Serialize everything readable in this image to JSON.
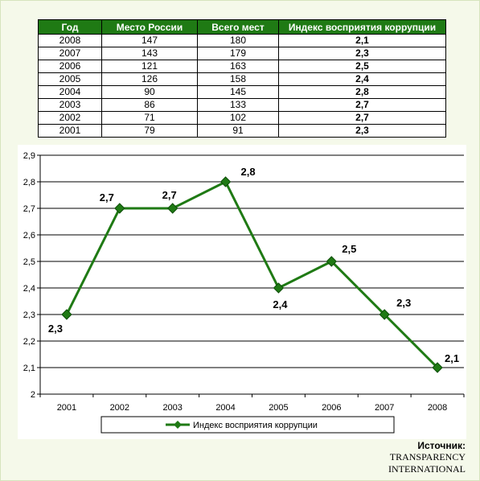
{
  "table": {
    "headers": [
      "Год",
      "Место России",
      "Всего мест",
      "Индекс восприятия коррупции"
    ],
    "rows": [
      [
        "2008",
        "147",
        "180",
        "2,1"
      ],
      [
        "2007",
        "143",
        "179",
        "2,3"
      ],
      [
        "2006",
        "121",
        "163",
        "2,5"
      ],
      [
        "2005",
        "126",
        "158",
        "2,4"
      ],
      [
        "2004",
        "90",
        "145",
        "2,8"
      ],
      [
        "2003",
        "86",
        "133",
        "2,7"
      ],
      [
        "2002",
        "71",
        "102",
        "2,7"
      ],
      [
        "2001",
        "79",
        "91",
        "2,3"
      ]
    ]
  },
  "chart_data": {
    "type": "line",
    "categories": [
      "2001",
      "2002",
      "2003",
      "2004",
      "2005",
      "2006",
      "2007",
      "2008"
    ],
    "series": [
      {
        "name": "Индекс восприятия коррупции",
        "values": [
          2.3,
          2.7,
          2.7,
          2.8,
          2.4,
          2.5,
          2.3,
          2.1
        ],
        "color": "#1f7a14"
      }
    ],
    "data_labels": [
      "2,3",
      "2,7",
      "2,7",
      "2,8",
      "2,4",
      "2,5",
      "2,3",
      "2,1"
    ],
    "y_tick_labels": [
      "2",
      "2,1",
      "2,2",
      "2,3",
      "2,4",
      "2,5",
      "2,6",
      "2,7",
      "2,8",
      "2,9"
    ],
    "ylim": [
      2,
      2.9
    ],
    "grid": true,
    "legend_position": "bottom",
    "title": "",
    "xlabel": "",
    "ylabel": ""
  },
  "source": {
    "label": "Источник:",
    "line1": "TRANSPARENCY",
    "line2": "INTERNATIONAL"
  }
}
